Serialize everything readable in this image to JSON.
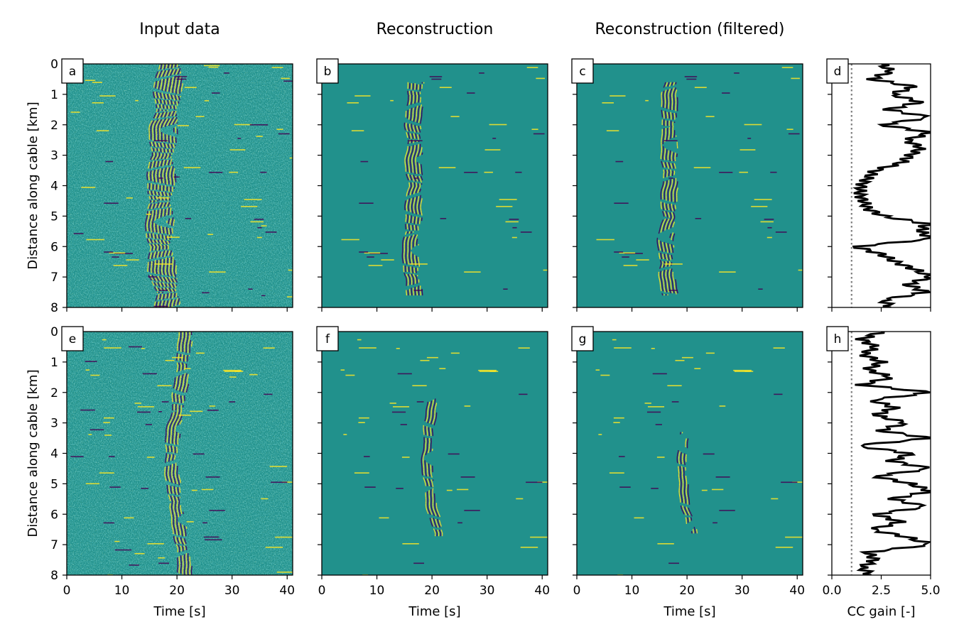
{
  "column_titles": [
    "Input data",
    "Reconstruction",
    "Reconstruction (filtered)"
  ],
  "chart_data": [
    {
      "type": "heatmap",
      "panel": "a",
      "title": "Input data",
      "xlabel": "",
      "ylabel": "Distance along cable [km]",
      "xlim": [
        0,
        41
      ],
      "ylim": [
        8,
        0
      ],
      "xticks": [],
      "yticks": [
        "0",
        "1",
        "2",
        "3",
        "4",
        "5",
        "6",
        "7",
        "8"
      ],
      "colormap": "viridis",
      "event_track": [
        [
          0,
          18.5
        ],
        [
          1,
          18.3
        ],
        [
          2,
          17.6
        ],
        [
          3,
          17.2
        ],
        [
          4,
          17.0
        ],
        [
          5,
          16.8
        ],
        [
          6,
          16.8
        ],
        [
          7,
          17.5
        ],
        [
          8,
          18.5
        ]
      ],
      "event_halfwidth_s": 2.6
    },
    {
      "type": "heatmap",
      "panel": "b",
      "title": "Reconstruction",
      "xlabel": "",
      "ylabel": "",
      "xlim": [
        0,
        41
      ],
      "ylim": [
        8,
        0
      ],
      "xticks": [],
      "yticks": [],
      "colormap": "viridis",
      "event_track": [
        [
          0.6,
          17.0
        ],
        [
          1,
          16.8
        ],
        [
          2,
          16.6
        ],
        [
          3,
          16.7
        ],
        [
          4,
          16.8
        ],
        [
          5,
          16.6
        ],
        [
          6,
          16.0
        ],
        [
          7,
          16.3
        ],
        [
          7.6,
          16.8
        ]
      ],
      "event_halfwidth_s": 1.6
    },
    {
      "type": "heatmap",
      "panel": "c",
      "title": "Reconstruction (filtered)",
      "xlabel": "",
      "ylabel": "",
      "xlim": [
        0,
        41
      ],
      "ylim": [
        8,
        0
      ],
      "xticks": [],
      "yticks": [],
      "colormap": "viridis",
      "event_track": [
        [
          0.6,
          17.0
        ],
        [
          1,
          16.8
        ],
        [
          2,
          16.6
        ],
        [
          3,
          16.7
        ],
        [
          4,
          16.8
        ],
        [
          5,
          16.6
        ],
        [
          6,
          16.0
        ],
        [
          7,
          16.3
        ],
        [
          7.6,
          16.8
        ]
      ],
      "event_halfwidth_s": 1.5
    },
    {
      "type": "line",
      "panel": "d",
      "title": "",
      "xlabel": "",
      "ylabel": "",
      "xlim": [
        0,
        5
      ],
      "ylim": [
        8,
        0
      ],
      "xticks": [],
      "yticks": [],
      "reference_line_x": 1.0,
      "y": [
        0,
        0.25,
        0.5,
        0.75,
        1,
        1.25,
        1.5,
        1.75,
        2,
        2.25,
        2.5,
        2.75,
        3,
        3.25,
        3.5,
        3.75,
        4,
        4.25,
        4.5,
        4.75,
        5,
        5.25,
        5.5,
        5.75,
        6,
        6.25,
        6.5,
        6.75,
        7,
        7.25,
        7.5,
        7.75,
        8
      ],
      "x": [
        2.5,
        3.0,
        2.0,
        4.2,
        3.0,
        4.5,
        2.8,
        5.0,
        2.5,
        5.0,
        3.8,
        4.5,
        4.0,
        3.5,
        2.2,
        1.8,
        1.5,
        1.4,
        1.6,
        1.8,
        2.6,
        4.8,
        4.5,
        5.0,
        1.2,
        2.5,
        3.2,
        4.2,
        5.0,
        3.8,
        4.8,
        2.6,
        3.0
      ]
    },
    {
      "type": "heatmap",
      "panel": "e",
      "title": "",
      "xlabel": "Time [s]",
      "ylabel": "Distance along cable [km]",
      "xlim": [
        0,
        41
      ],
      "ylim": [
        8,
        0
      ],
      "xticks": [
        "0",
        "10",
        "20",
        "30",
        "40"
      ],
      "yticks": [
        "0",
        "1",
        "2",
        "3",
        "4",
        "5",
        "6",
        "7",
        "8"
      ],
      "colormap": "viridis",
      "event_track": [
        [
          0,
          21.5
        ],
        [
          1,
          21.0
        ],
        [
          2,
          20.5
        ],
        [
          3,
          19.5
        ],
        [
          4,
          18.8
        ],
        [
          5,
          19.2
        ],
        [
          6,
          20.0
        ],
        [
          7,
          20.8
        ],
        [
          8,
          21.5
        ]
      ],
      "event_halfwidth_s": 1.3
    },
    {
      "type": "heatmap",
      "panel": "f",
      "title": "",
      "xlabel": "Time [s]",
      "ylabel": "",
      "xlim": [
        0,
        41
      ],
      "ylim": [
        8,
        0
      ],
      "xticks": [
        "0",
        "10",
        "20",
        "30",
        "40"
      ],
      "yticks": [],
      "colormap": "viridis",
      "event_track": [
        [
          2.2,
          20.0
        ],
        [
          3,
          19.5
        ],
        [
          4,
          19.0
        ],
        [
          5,
          19.3
        ],
        [
          6,
          20.2
        ],
        [
          6.7,
          21.3
        ]
      ],
      "event_halfwidth_s": 1.0
    },
    {
      "type": "heatmap",
      "panel": "g",
      "title": "",
      "xlabel": "Time [s]",
      "ylabel": "",
      "xlim": [
        0,
        41
      ],
      "ylim": [
        8,
        0
      ],
      "xticks": [
        "0",
        "10",
        "20",
        "30",
        "40"
      ],
      "yticks": [],
      "colormap": "viridis",
      "event_track": [
        [
          3.3,
          19.5
        ],
        [
          4,
          19.0
        ],
        [
          5,
          19.2
        ],
        [
          6,
          20.0
        ],
        [
          6.6,
          21.0
        ]
      ],
      "event_halfwidth_s": 0.9
    },
    {
      "type": "line",
      "panel": "h",
      "title": "",
      "xlabel": "CC gain [-]",
      "ylabel": "",
      "xlim": [
        0,
        5
      ],
      "ylim": [
        8,
        0
      ],
      "xticks": [
        "0.0",
        "2.5",
        "5.0"
      ],
      "yticks": [],
      "reference_line_x": 1.0,
      "y": [
        0,
        0.25,
        0.5,
        0.75,
        1,
        1.25,
        1.5,
        1.75,
        2,
        2.25,
        2.5,
        2.75,
        3,
        3.25,
        3.5,
        3.75,
        4,
        4.25,
        4.5,
        4.75,
        5,
        5.25,
        5.5,
        5.75,
        6,
        6.25,
        6.5,
        6.75,
        7,
        7.25,
        7.5,
        7.75,
        8
      ],
      "x": [
        2.5,
        1.5,
        2.2,
        1.6,
        2.5,
        1.8,
        3.0,
        1.5,
        5.0,
        2.0,
        3.2,
        2.2,
        3.8,
        2.4,
        5.0,
        1.2,
        4.0,
        3.0,
        5.0,
        2.2,
        4.0,
        5.0,
        3.0,
        4.8,
        2.2,
        3.5,
        2.0,
        3.8,
        5.0,
        1.8,
        2.2,
        1.5,
        2.0
      ]
    }
  ]
}
